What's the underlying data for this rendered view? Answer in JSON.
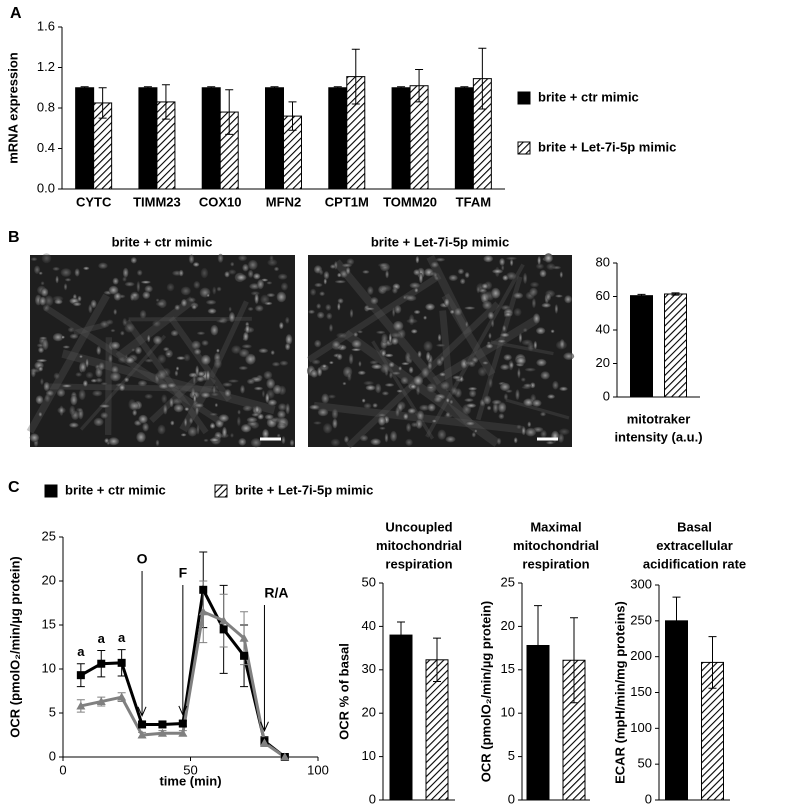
{
  "chart_data": [
    {
      "type": "bar",
      "panel": "A",
      "ylabel": "mRNA expression",
      "categories": [
        "CYTC",
        "TIMM23",
        "COX10",
        "MFN2",
        "CPT1M",
        "TOMM20",
        "TFAM"
      ],
      "series": [
        {
          "name": "brite + ctr mimic",
          "color": "#000000",
          "hatch": false,
          "values": [
            1.0,
            1.0,
            1.0,
            1.0,
            1.0,
            1.0,
            1.0
          ],
          "errors": [
            0.01,
            0.01,
            0.01,
            0.01,
            0.01,
            0.01,
            0.01
          ]
        },
        {
          "name": "brite + Let-7i-5p mimic",
          "color": "#000000",
          "hatch": true,
          "values": [
            0.85,
            0.86,
            0.76,
            0.72,
            1.11,
            1.02,
            1.09
          ],
          "errors": [
            0.15,
            0.17,
            0.22,
            0.14,
            0.27,
            0.16,
            0.3
          ]
        }
      ],
      "ylim": [
        0,
        1.6
      ],
      "yticks": [
        {
          "value": 0,
          "label": "0.0"
        },
        0.4,
        0.8,
        1.2,
        1.6
      ],
      "legend": "right"
    },
    {
      "type": "bar",
      "panel": "B",
      "xlabel": [
        "mitotraker",
        "intensity (a.u.)"
      ],
      "series": [
        {
          "color": "#000000",
          "hatch": false,
          "values": [
            60.5
          ],
          "errors": [
            0.8
          ]
        },
        {
          "color": "#000000",
          "hatch": true,
          "values": [
            61.5
          ],
          "errors": [
            0.7
          ]
        }
      ],
      "ylim": [
        0,
        80
      ],
      "yticks": [
        0,
        20,
        40,
        60,
        80
      ]
    },
    {
      "type": "line",
      "panel": "C",
      "xlabel": "time (min)",
      "ylabel": "OCR (pmolO₂/min/µg protein)",
      "x": [
        7,
        15,
        23,
        31,
        39,
        47,
        55,
        63,
        71,
        79,
        87
      ],
      "series": [
        {
          "name": "brite + ctr mimic",
          "color": "#000000",
          "marker": "square",
          "values": [
            9.3,
            10.6,
            10.7,
            3.7,
            3.7,
            3.8,
            19.0,
            14.5,
            11.5,
            1.8,
            0
          ],
          "errors": [
            1.3,
            1.5,
            1.5,
            0.3,
            0.3,
            0.3,
            4.3,
            5.0,
            3.5,
            0.5,
            0.2
          ]
        },
        {
          "name": "brite + Let-7i-5p mimic",
          "color": "#808080",
          "marker": "triangle",
          "values": [
            5.8,
            6.3,
            6.8,
            2.5,
            2.7,
            2.7,
            16.5,
            15.5,
            13.5,
            1.6,
            0
          ],
          "errors": [
            0.7,
            0.5,
            0.5,
            0.3,
            0.3,
            0.3,
            3.5,
            3.0,
            3.0,
            0.4,
            0.2
          ]
        }
      ],
      "xlim": [
        0,
        100
      ],
      "xticks": [
        0,
        50,
        100
      ],
      "ylim": [
        0,
        25
      ],
      "yticks": [
        0,
        5,
        10,
        15,
        20,
        25
      ],
      "point_labels": [
        {
          "text": "a",
          "x": 7
        },
        {
          "text": "a",
          "x": 15
        },
        {
          "text": "a",
          "x": 23
        }
      ],
      "arrows": [
        {
          "text": "O",
          "x": 31
        },
        {
          "text": "F",
          "x": 47
        },
        {
          "text": "R/A",
          "x": 79
        }
      ],
      "legend": "top"
    },
    {
      "type": "bar",
      "title": [
        "Uncoupled",
        "mitochondrial",
        "respiration"
      ],
      "ylabel": "OCR % of basal",
      "series": [
        {
          "color": "#000000",
          "hatch": false,
          "values": [
            38.0
          ],
          "errors": [
            3.0
          ]
        },
        {
          "color": "#000000",
          "hatch": true,
          "values": [
            32.3
          ],
          "errors": [
            5.0
          ]
        }
      ],
      "ylim": [
        0,
        50
      ],
      "yticks": [
        0,
        10,
        20,
        30,
        40,
        50
      ]
    },
    {
      "type": "bar",
      "title": [
        "Maximal",
        "mitochondrial",
        "respiration"
      ],
      "ylabel": "OCR (pmolO₂/min/µg protein)",
      "series": [
        {
          "color": "#000000",
          "hatch": false,
          "values": [
            17.8
          ],
          "errors": [
            4.6
          ]
        },
        {
          "color": "#000000",
          "hatch": true,
          "values": [
            16.1
          ],
          "errors": [
            4.9
          ]
        }
      ],
      "ylim": [
        0,
        25
      ],
      "yticks": [
        0,
        5,
        10,
        15,
        20,
        25
      ]
    },
    {
      "type": "bar",
      "title": [
        "Basal",
        "extracellular",
        "acidification rate"
      ],
      "ylabel": "ECAR (mpH/min/mg proteins)",
      "series": [
        {
          "color": "#000000",
          "hatch": false,
          "values": [
            250
          ],
          "errors": [
            33
          ]
        },
        {
          "color": "#000000",
          "hatch": true,
          "values": [
            192
          ],
          "errors": [
            36
          ]
        }
      ],
      "ylim": [
        0,
        300
      ],
      "yticks": [
        0,
        50,
        100,
        150,
        200,
        250,
        300
      ]
    }
  ],
  "images": [
    {
      "title": "brite + ctr mimic"
    },
    {
      "title": "brite + Let-7i-5p mimic"
    }
  ]
}
